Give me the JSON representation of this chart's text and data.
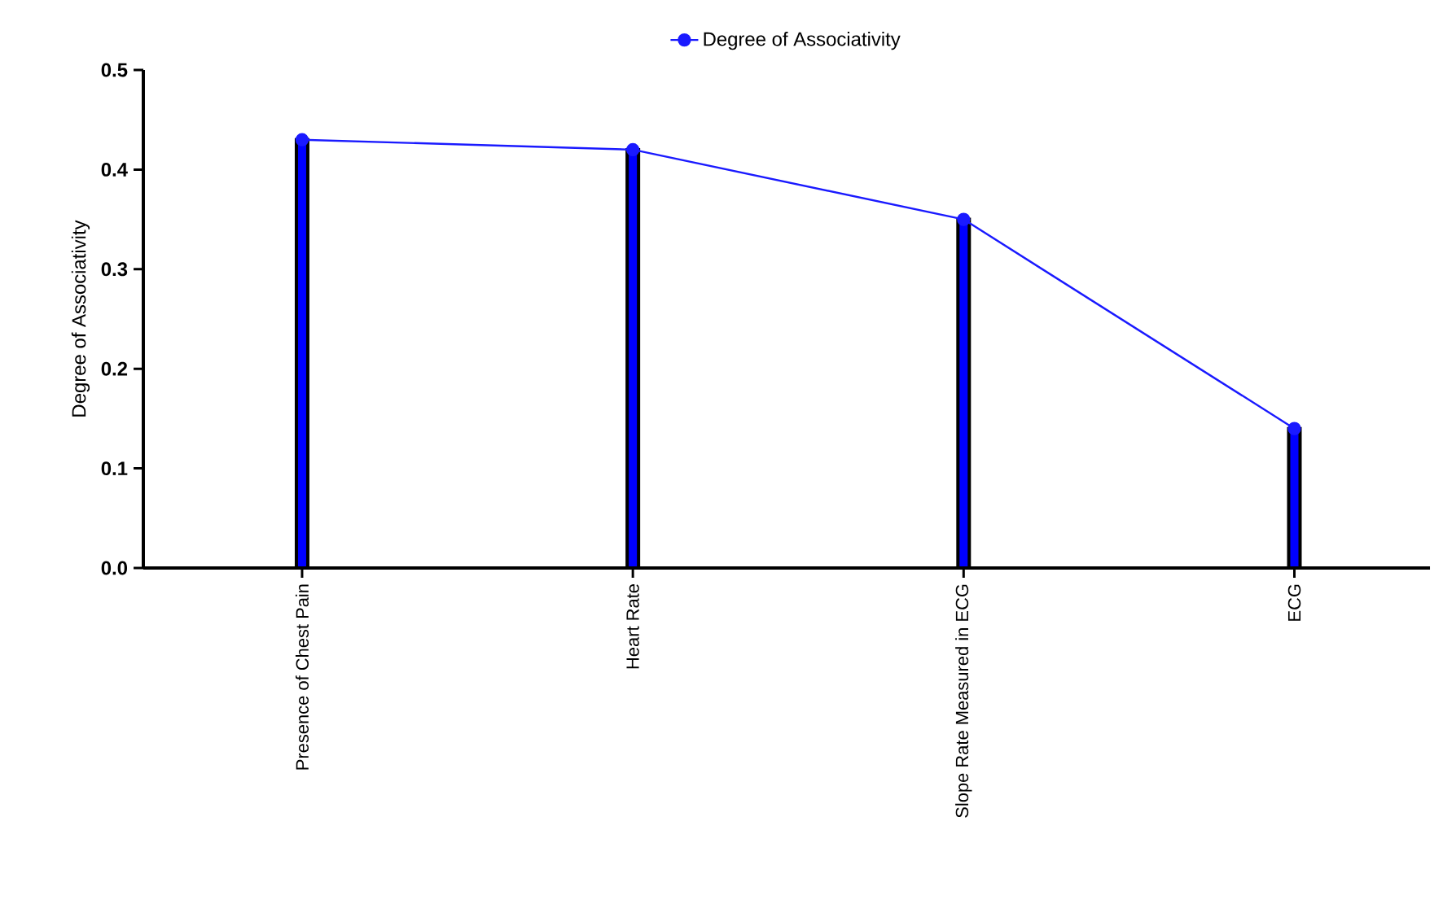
{
  "chart_data": {
    "type": "bar",
    "ylabel": "Degree of Associativity",
    "categories": [
      "Presence of Chest Pain",
      "Heart Rate",
      "Slope Rate Measured in ECG",
      "ECG"
    ],
    "ylim": [
      0,
      0.5
    ],
    "yticks": [
      {
        "value": 0,
        "label": "0.0"
      },
      0.1,
      0.2,
      0.3,
      0.4,
      0.5
    ],
    "legend": "top",
    "marker": "circle",
    "series": [
      {
        "type": "bar",
        "color": "#0000ff",
        "values": [
          0.43,
          0.42,
          0.35,
          0.14
        ]
      },
      {
        "type": "line",
        "name": "Degree of Associativity",
        "color": "#1a1aff",
        "values": [
          0.43,
          0.42,
          0.35,
          0.14
        ]
      }
    ]
  }
}
